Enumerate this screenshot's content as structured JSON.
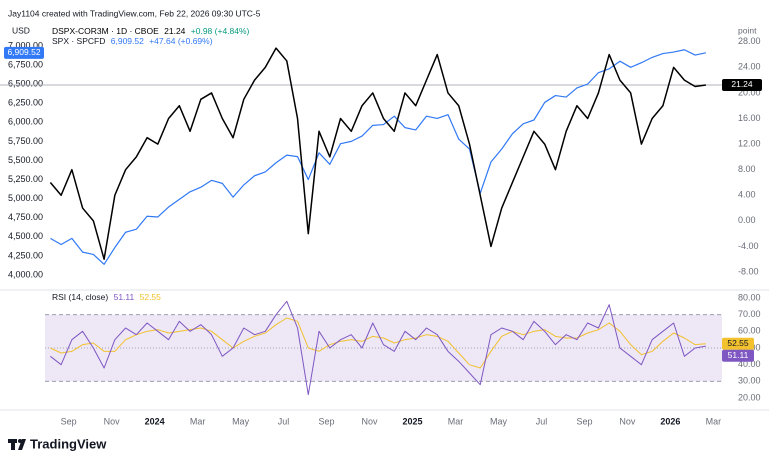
{
  "header": {
    "attribution": "Jay1104 created with TradingView.com, Feb 22, 2026 09:30 UTC-5"
  },
  "footer": {
    "brand": "TradingView"
  },
  "chart_data": [
    {
      "type": "line",
      "y_label": "USD",
      "y2_label": "point",
      "x": [
        0.15,
        0.65,
        1.15,
        1.65,
        2.15,
        2.65,
        3.15,
        3.65,
        4.15,
        4.65,
        5.15,
        5.65,
        6.15,
        6.65,
        7.15,
        7.65,
        8.15,
        8.65,
        9.15,
        9.65,
        10.15,
        10.65,
        11.15,
        11.65,
        12.15,
        12.65,
        13.15,
        13.65,
        14.15,
        14.65,
        15.15,
        15.65,
        16.15,
        16.65,
        17.15,
        17.65,
        18.15,
        18.65,
        19.15,
        19.65,
        20.15,
        20.65,
        21.15,
        21.65,
        22.15,
        22.65,
        23.15,
        23.65,
        24.15,
        24.65,
        25.15,
        25.65,
        26.15,
        26.65,
        27.15,
        27.65,
        28.15,
        28.65,
        29.15,
        29.65,
        30.15,
        30.65
      ],
      "xlim": [
        -0.1,
        31.4
      ],
      "ylim": [
        3830,
        7130
      ],
      "yticks": [
        {
          "value": 4000,
          "label": "4,000.00"
        },
        {
          "value": 4250,
          "label": "4,250.00"
        },
        {
          "value": 4500,
          "label": "4,500.00"
        },
        {
          "value": 4750,
          "label": "4,750.00"
        },
        {
          "value": 5000,
          "label": "5,000.00"
        },
        {
          "value": 5250,
          "label": "5,250.00"
        },
        {
          "value": 5500,
          "label": "5,500.00"
        },
        {
          "value": 5750,
          "label": "5,750.00"
        },
        {
          "value": 6000,
          "label": "6,000.00"
        },
        {
          "value": 6250,
          "label": "6,250.00"
        },
        {
          "value": 6500,
          "label": "6,500.00"
        },
        {
          "value": 6750,
          "label": "6,750.00"
        },
        {
          "value": 7000,
          "label": "7,000.00"
        }
      ],
      "y2lim": [
        -10.5,
        28.9
      ],
      "y2ticks": [
        {
          "value": -8,
          "label": "-8.00"
        },
        {
          "value": -4,
          "label": "-4.00"
        },
        {
          "value": 0,
          "label": "0.00"
        },
        {
          "value": 4,
          "label": "4.00"
        },
        {
          "value": 8,
          "label": "8.00"
        },
        {
          "value": 12,
          "label": "12.00"
        },
        {
          "value": 16,
          "label": "16.00"
        },
        {
          "value": 20,
          "label": "20.00"
        },
        {
          "value": 24,
          "label": "24.00"
        },
        {
          "value": 28,
          "label": "28.00"
        }
      ],
      "series": [
        {
          "name": "DSPX-COR3M · 1D · CBOE",
          "color": "#000000",
          "axis": "y2",
          "change_label": "+0.98 (+4.84%)",
          "change_color": "#089981",
          "values": [
            6,
            4,
            8,
            2,
            0,
            -6,
            4,
            8,
            10,
            13,
            12,
            16,
            18,
            14,
            19,
            20,
            16,
            13,
            19,
            22,
            24,
            27,
            25,
            16,
            -2,
            14,
            10,
            16,
            14,
            18,
            20,
            16,
            14,
            20,
            18,
            22,
            26,
            20,
            18,
            12,
            4,
            -4,
            2,
            6,
            10,
            14,
            12,
            8,
            14,
            18,
            16,
            20,
            26,
            22,
            20,
            12,
            16,
            18,
            24,
            22,
            21,
            21.24
          ]
        },
        {
          "name": "SPX · SPCFD",
          "color": "#3179f5",
          "axis": "y",
          "last_label": "6,909.52",
          "change_label": "+47.64 (+0.69%)",
          "change_color": "#3179f5",
          "values": [
            4480,
            4400,
            4480,
            4300,
            4270,
            4140,
            4360,
            4560,
            4600,
            4770,
            4760,
            4890,
            4990,
            5090,
            5150,
            5240,
            5200,
            5020,
            5180,
            5300,
            5350,
            5470,
            5570,
            5550,
            5250,
            5600,
            5450,
            5720,
            5750,
            5820,
            5960,
            5970,
            6080,
            5930,
            5900,
            6080,
            6050,
            6100,
            5780,
            5650,
            5070,
            5480,
            5650,
            5850,
            5980,
            6030,
            6260,
            6350,
            6330,
            6450,
            6500,
            6650,
            6700,
            6800,
            6720,
            6780,
            6850,
            6900,
            6920,
            6950,
            6880,
            6909.52
          ]
        }
      ]
    },
    {
      "type": "line",
      "title": "RSI (14, close)",
      "x": [
        0.15,
        0.65,
        1.15,
        1.65,
        2.15,
        2.65,
        3.15,
        3.65,
        4.15,
        4.65,
        5.15,
        5.65,
        6.15,
        6.65,
        7.15,
        7.65,
        8.15,
        8.65,
        9.15,
        9.65,
        10.15,
        10.65,
        11.15,
        11.65,
        12.15,
        12.65,
        13.15,
        13.65,
        14.15,
        14.65,
        15.15,
        15.65,
        16.15,
        16.65,
        17.15,
        17.65,
        18.15,
        18.65,
        19.15,
        19.65,
        20.15,
        20.65,
        21.15,
        21.65,
        22.15,
        22.65,
        23.15,
        23.65,
        24.15,
        24.65,
        25.15,
        25.65,
        26.15,
        26.65,
        27.15,
        27.65,
        28.15,
        28.65,
        29.15,
        29.65,
        30.15,
        30.65
      ],
      "xlim": [
        -0.1,
        31.4
      ],
      "xticks": [
        {
          "value": 1,
          "label": "Sep"
        },
        {
          "value": 3,
          "label": "Nov"
        },
        {
          "value": 5,
          "label": "2024"
        },
        {
          "value": 7,
          "label": "Mar"
        },
        {
          "value": 9,
          "label": "May"
        },
        {
          "value": 11,
          "label": "Jul"
        },
        {
          "value": 13,
          "label": "Sep"
        },
        {
          "value": 15,
          "label": "Nov"
        },
        {
          "value": 17,
          "label": "2025"
        },
        {
          "value": 19,
          "label": "Mar"
        },
        {
          "value": 21,
          "label": "May"
        },
        {
          "value": 23,
          "label": "Jul"
        },
        {
          "value": 25,
          "label": "Sep"
        },
        {
          "value": 27,
          "label": "Nov"
        },
        {
          "value": 29,
          "label": "2026"
        },
        {
          "value": 31,
          "label": "Mar"
        }
      ],
      "ylim": [
        14,
        83.6
      ],
      "yticks": [
        {
          "value": 20,
          "label": "20.00"
        },
        {
          "value": 30,
          "label": "30.00"
        },
        {
          "value": 40,
          "label": "40.00"
        },
        {
          "value": 50,
          "label": "50.00"
        },
        {
          "value": 60,
          "label": "60.00"
        },
        {
          "value": 70,
          "label": "70.00"
        },
        {
          "value": 80,
          "label": "80.00"
        }
      ],
      "levels": [
        70,
        50,
        30
      ],
      "band_color": "#ede7f6",
      "series": [
        {
          "color": "#7e57c2",
          "values": [
            45,
            40,
            55,
            60,
            50,
            38,
            55,
            62,
            58,
            65,
            60,
            55,
            66,
            60,
            64,
            58,
            45,
            50,
            62,
            58,
            60,
            70,
            78,
            62,
            22,
            60,
            50,
            55,
            58,
            50,
            65,
            52,
            48,
            60,
            55,
            62,
            58,
            48,
            42,
            35,
            28,
            58,
            62,
            60,
            55,
            66,
            60,
            52,
            58,
            55,
            65,
            62,
            76,
            50,
            45,
            40,
            55,
            60,
            65,
            45,
            50,
            51.11
          ]
        },
        {
          "color": "#f2c12e",
          "values": [
            50,
            47,
            48,
            52,
            53,
            48,
            48,
            55,
            58,
            60,
            61,
            59,
            60,
            61,
            62,
            60,
            55,
            50,
            54,
            57,
            59,
            64,
            68,
            66,
            50,
            48,
            52,
            54,
            55,
            54,
            57,
            56,
            53,
            55,
            56,
            58,
            57,
            54,
            47,
            40,
            38,
            48,
            57,
            60,
            58,
            60,
            61,
            57,
            56,
            56,
            59,
            61,
            65,
            60,
            52,
            46,
            48,
            54,
            59,
            56,
            52,
            52.55
          ]
        }
      ]
    }
  ]
}
